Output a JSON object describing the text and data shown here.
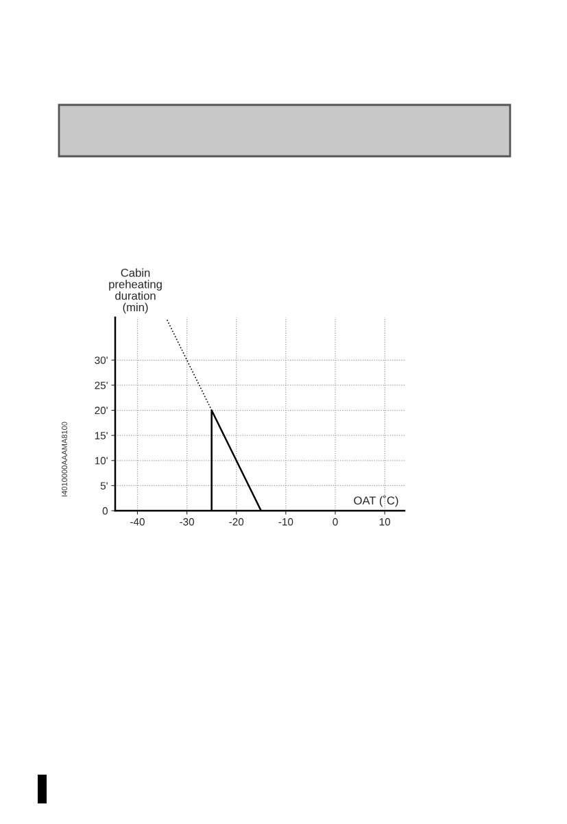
{
  "chart_data": {
    "type": "line",
    "xlabel": "OAT (˚C)",
    "ylabel": "Cabin\npreheating\nduration\n(min)",
    "series": [
      {
        "color": "#000000",
        "x": [
          -25,
          -25,
          -15
        ],
        "values": [
          0,
          20,
          0
        ],
        "line_style": "solid"
      },
      {
        "color": "#000000",
        "x": [
          -34,
          -25
        ],
        "values": [
          38,
          20
        ],
        "line_style": "dotted"
      }
    ],
    "xlim": [
      -44.5,
      14
    ],
    "ylim": [
      0,
      38.5
    ],
    "xticks": [
      -40,
      -30,
      -20,
      -10,
      0,
      10
    ],
    "yticks": [
      0,
      {
        "value": 5,
        "label": "5'"
      },
      {
        "value": 10,
        "label": "10'"
      },
      {
        "value": 15,
        "label": "15'"
      },
      {
        "value": 20,
        "label": "20'"
      },
      {
        "value": 25,
        "label": "25'"
      },
      {
        "value": 30,
        "label": "30'"
      }
    ],
    "grid": true,
    "marker": "none",
    "annotations": [
      "I4010000AAAMA8100"
    ]
  }
}
